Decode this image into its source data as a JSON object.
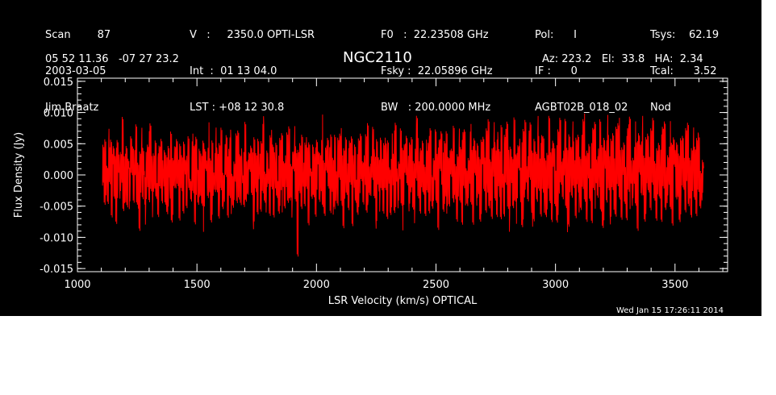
{
  "header": {
    "col1": [
      "Scan        87",
      "2003-03-05",
      "Jim Braatz"
    ],
    "col2": [
      "V   :     2350.0 OPTI-LSR",
      "Int  :  01 13 04.0",
      "LST : +08 12 30.8"
    ],
    "col3": [
      "F0   :  22.23508 GHz",
      "Fsky :  22.05896 GHz",
      "BW   : 200.0000 MHz"
    ],
    "col4": [
      "Pol:      I",
      "IF :      0",
      "AGBT02B_018_02"
    ],
    "col5": [
      "Tsys:    62.19",
      "Tcal:      3.52",
      "Nod"
    ],
    "coords": "05 52 11.36   -07 27 23.2",
    "source": "NGC2110",
    "azel": "Az: 223.2   El:  33.8   HA:  2.34",
    "timestamp": "Wed Jan 15 17:26:11 2014"
  },
  "chart_data": {
    "type": "line",
    "title": "NGC2110",
    "xlabel": "LSR Velocity (km/s) OPTICAL",
    "ylabel": "Flux Density (Jy)",
    "xlim": [
      1000,
      3720
    ],
    "ylim": [
      -0.0155,
      0.0155
    ],
    "xticks": [
      "1000",
      "1500",
      "2000",
      "2500",
      "3000",
      "3500"
    ],
    "xtick_values": [
      1000,
      1500,
      2000,
      2500,
      3000,
      3500
    ],
    "yticks": [
      "0.015",
      "0.010",
      "0.005",
      "0.000",
      "-0.005",
      "-0.010",
      "-0.015"
    ],
    "ytick_values": [
      0.015,
      0.01,
      0.005,
      0.0,
      -0.005,
      -0.01,
      -0.015
    ],
    "grid": false,
    "series": [
      {
        "color": "#ff0000",
        "x_start": 1105,
        "x_end": 3620,
        "values": [
          0.0005,
          0.0042,
          -0.0031,
          0.0058,
          -0.0012,
          0.0023,
          -0.0047,
          0.0061,
          -0.0008,
          0.0035,
          -0.0054,
          0.0019,
          0.0064,
          -0.0029,
          0.0011,
          -0.0062,
          0.0044,
          -0.0017,
          0.0028,
          -0.0039,
          0.0052,
          -0.0006,
          0.0071,
          -0.0044,
          0.0015,
          -0.0023,
          0.0039,
          -0.0068,
          0.0026,
          0.0003,
          -0.0035,
          0.0057,
          -0.0014,
          0.0048,
          -0.0051,
          0.0021,
          -0.0003,
          0.0066,
          -0.0027,
          0.0012,
          -0.0074,
          0.0037,
          -0.0009,
          0.0054,
          -0.0041,
          0.0024,
          0.0002,
          -0.0058,
          0.0046,
          -0.0019,
          0.0033,
          -0.0036,
          0.0062,
          -0.0011,
          0.0017,
          -0.0049,
          0.0041,
          -0.0024,
          0.0069,
          -0.0033,
          0.0008,
          -0.0055,
          0.0031,
          -0.0002,
          0.0049,
          -0.0063,
          0.0022,
          -0.0016,
          0.0058,
          -0.0038,
          0.0013,
          -0.0046,
          0.0035,
          0.0004,
          -0.0026,
          0.0053,
          -0.0057,
          0.0018,
          -0.0007,
          0.0044,
          -0.0032,
          0.0063,
          -0.0021,
          0.0009,
          -0.0069,
          0.0038,
          -0.0013,
          0.0027,
          -0.0043,
          0.0056,
          -0.0005,
          0.0034,
          -0.0052,
          0.0016,
          0.0067,
          -0.0028,
          0.0006,
          -0.0039,
          0.0045,
          -0.0018,
          0.0029,
          -0.0061,
          0.0051,
          -0.001,
          0.0021,
          -0.0047,
          0.0059,
          -0.0025,
          0.0014,
          -0.0034,
          0.0042,
          -0.0072,
          0.0036,
          -0.0008,
          0.0025,
          -0.0044,
          0.0065,
          -0.0015,
          0.0011,
          -0.0056,
          0.0047,
          -0.0022,
          0.0003,
          -0.0037,
          0.0054,
          -0.003,
          0.0019,
          -0.0065,
          0.004,
          -0.0012,
          0.0072,
          -0.0035,
          0.0007,
          -0.0048,
          0.0032,
          -0.0001,
          0.005,
          -0.0059,
          0.0023,
          -0.002,
          0.0061,
          -0.0042,
          0.001,
          -0.0053,
          0.0037,
          -0.0004,
          0.0045,
          -0.0031,
          0.0057,
          -0.0018,
          0.0026,
          -0.0064,
          0.0043,
          -0.0009,
          0.0016,
          -0.004,
          0.0068,
          -0.0024,
          0.0012,
          -0.005,
          0.0034,
          -0.0006,
          0.0052,
          -0.0036,
          0.002,
          -0.0071,
          0.0048,
          -0.0014,
          0.003,
          -0.0045,
          0.006,
          -0.0003,
          0.0015,
          -0.0058,
          0.0039,
          -0.0021,
          0.0074,
          -0.0029,
          0.0005,
          -0.0041,
          0.0046,
          -0.0016,
          0.0024,
          -0.006,
          0.0053,
          -0.001,
          0.0033,
          -0.0048,
          0.0028,
          -0.0026,
          0.0063,
          -0.0034,
          0.0009,
          -0.0052,
          0.0041,
          -0.0007,
          0.0056,
          -0.0039,
          0.0018,
          -0.0066,
          0.0035,
          -0.0012,
          0.0047,
          -0.003,
          0.0064,
          -0.0019,
          0.0011,
          -0.0055,
          0.0038,
          -0.0002,
          0.0058,
          -0.0043,
          0.0022,
          -0.0124,
          0.0031,
          -0.0015,
          0.0049,
          -0.0033,
          0.007,
          -0.0022,
          0.0004,
          -0.0046,
          0.004,
          -0.0011,
          0.0027,
          -0.0062,
          0.0055,
          -0.0008,
          0.0019,
          -0.0037,
          0.0066,
          -0.0027,
          0.0014,
          -0.0051,
          0.0044,
          -0.0004,
          0.0032,
          -0.0057,
          0.005,
          -0.002,
          0.0078,
          -0.0038,
          0.0008,
          -0.0045,
          0.0036,
          -0.0013,
          0.0059,
          -0.0031,
          0.0023,
          -0.0063,
          0.0047,
          -0.0009,
          0.0017,
          -0.0042,
          0.0061,
          -0.0025,
          0.001,
          -0.0054,
          0.0039,
          -0.0005,
          0.0053,
          -0.0035,
          0.0029,
          -0.0068,
          0.0044,
          -0.0017,
          0.0069,
          -0.0032,
          0.0006,
          -0.0049,
          0.0034,
          -0.0001,
          0.0048,
          -0.006,
          0.0025,
          -0.0023,
          0.0062,
          -0.004,
          0.0013,
          -0.0052,
          0.0042,
          -0.001,
          0.0057,
          -0.0028,
          0.002,
          -0.0058,
          0.0037,
          -0.0007,
          0.0046,
          -0.0044,
          0.0071,
          -0.0021,
          0.0009,
          -0.0047,
          0.0033,
          -0.0014,
          0.0055,
          -0.0036,
          0.0018,
          -0.0065,
          0.005,
          -0.0003,
          0.0028,
          -0.0039,
          0.0067,
          -0.0026,
          0.0012,
          -0.0056,
          0.0041,
          -0.0011,
          0.0035,
          -0.005,
          0.006,
          -0.0018,
          0.0024,
          -0.0061,
          0.0045,
          -0.0006,
          0.0016,
          -0.0043,
          0.0073,
          -0.003,
          0.0007,
          -0.0053,
          0.0038,
          0.0001,
          0.0054,
          -0.0034,
          0.003,
          -0.007,
          0.0043,
          -0.0015,
          0.0064,
          -0.0024,
          0.0011,
          -0.0046,
          0.0036,
          -0.0008,
          0.0052,
          -0.0041,
          0.0021,
          -0.0059,
          0.0048,
          -0.0012,
          0.0076,
          -0.0033,
          0.0014,
          -0.005,
          0.0039,
          -0.0004,
          0.0058,
          -0.0037,
          0.0027,
          -0.0064,
          0.0046,
          -0.0019,
          0.0032,
          -0.0045,
          0.0063,
          -0.0022,
          0.0008,
          -0.0055,
          0.0042,
          -0.0002,
          0.0051,
          -0.0031,
          0.0019,
          -0.0067,
          0.0049,
          -0.001,
          0.007,
          -0.0028,
          0.0015,
          -0.0048,
          0.0037,
          -0.0016,
          0.006,
          -0.004,
          0.0026,
          -0.0062,
          0.0044,
          -0.0007,
          0.0022,
          -0.0038,
          0.0066,
          -0.0025,
          0.0012,
          -0.0057,
          0.0035,
          -0.0013,
          0.0055,
          -0.0044,
          0.0029,
          -0.0072,
          0.0048,
          -0.0006,
          0.0072,
          -0.003,
          0.0017,
          -0.0052,
          0.0041,
          -0.0009,
          0.0062,
          -0.0035,
          0.0024,
          -0.006,
          0.005,
          -0.0018,
          0.0038,
          -0.0047,
          0.0069,
          -0.0021,
          0.001,
          -0.0058,
          0.0045,
          -0.0003,
          0.0057,
          -0.0039,
          0.0031,
          -0.0066,
          0.0053,
          -0.0014,
          0.0075,
          -0.0032,
          0.0018,
          -0.0054,
          0.0043,
          -0.0011,
          0.0064,
          -0.0042,
          0.0026,
          -0.0061,
          0.0047,
          -0.0008,
          0.0039,
          -0.005,
          0.0085,
          -0.0024,
          0.0014,
          -0.0063,
          0.0052,
          -0.0005,
          0.0068,
          -0.0036,
          0.003,
          -0.0069,
          0.0055,
          -0.0012,
          0.0046,
          -0.0045,
          0.0072,
          -0.0027,
          0.002,
          -0.0059,
          0.0042,
          -0.0007,
          0.006,
          -0.0038,
          0.0033,
          -0.0071,
          0.0058,
          -0.0016,
          0.008,
          -0.0029,
          0.0013,
          -0.0052,
          0.0049,
          -0.001,
          0.0066,
          -0.0043,
          0.0028,
          -0.0062,
          0.0054,
          -0.0004,
          0.0041,
          -0.0048,
          0.0077,
          -0.0023,
          0.0016,
          -0.0057,
          0.0045,
          -0.0009,
          0.0063,
          -0.004,
          0.0035,
          -0.0068,
          0.0051,
          -0.0015,
          0.0073,
          -0.0031,
          0.0022,
          -0.0054,
          0.0048,
          -0.0006,
          0.0059,
          -0.0046,
          0.0027,
          -0.0065,
          0.0056,
          -0.0011,
          0.0082,
          -0.0034,
          0.0019,
          -0.005,
          0.0044,
          -0.0008,
          0.007,
          -0.0037,
          0.0031,
          -0.0072,
          0.006,
          -0.0013,
          0.0047,
          -0.0043,
          0.0067,
          -0.002,
          0.0012,
          -0.0061,
          0.0052,
          -0.0003,
          0.0064,
          -0.0041,
          0.0036,
          -0.0058,
          0.005,
          -0.0017,
          0.0079,
          -0.003,
          0.0015,
          -0.0055,
          0.0043,
          -0.001,
          0.0061,
          -0.0039,
          0.0029,
          -0.0067,
          0.0057,
          -0.0007,
          0.0074,
          -0.0033,
          0.0021,
          -0.0049,
          0.0046,
          -0.0012,
          0.0068,
          -0.0044,
          0.0034,
          -0.0063,
          0.0053,
          -0.0005,
          0.004,
          -0.0052,
          0.0076,
          -0.0025,
          0.0017,
          -0.006,
          0.0049,
          -0.0009,
          0.0065,
          -0.0038,
          0.0032,
          -0.007,
          0.0058,
          -0.0014,
          0.0071,
          -0.0028,
          0.0023,
          -0.0053,
          0.0047,
          -0.0006,
          0.0062,
          -0.0045,
          0.003,
          -0.0064,
          0.0055,
          -0.0011,
          0.0081,
          -0.0035,
          0.0018,
          -0.0051,
          0.0042,
          -0.0008,
          0.0067,
          -0.0036,
          0.0037,
          -0.0069,
          0.0059,
          -0.0016,
          0.0048,
          -0.0042,
          0.0073,
          -0.0022,
          0.0013,
          -0.0057,
          0.005,
          -0.0004,
          0.0063,
          -0.004,
          0.0033,
          -0.0061,
          0.0054,
          -0.0013,
          0.0078,
          -0.0031,
          0.0016,
          -0.0056,
          0.0044,
          -0.001,
          0.006,
          -0.0038,
          0.0028,
          -0.0068,
          0.0056,
          -0.0007,
          0.0072,
          -0.0034,
          0.0022,
          -0.0048,
          0.0045,
          -0.0011,
          0.0066,
          -0.0043,
          0.0035,
          -0.0062,
          0.0051,
          -0.0005,
          0.0038,
          -0.005,
          0.007,
          -0.0026,
          0.0015,
          -0.0059,
          0.0047,
          -0.0009,
          0.0058,
          -0.0037,
          0.003,
          -0.0066,
          0.0053,
          -0.0012,
          0.0069,
          -0.0029,
          0.002,
          -0.0052,
          0.0043,
          -0.0006,
          0.0055,
          -0.0041,
          0.0027,
          -0.006,
          0.0049,
          -0.0014,
          0.0061,
          -0.0033,
          0.0011,
          -0.0045,
          0.0036,
          -0.0002
        ]
      }
    ]
  }
}
